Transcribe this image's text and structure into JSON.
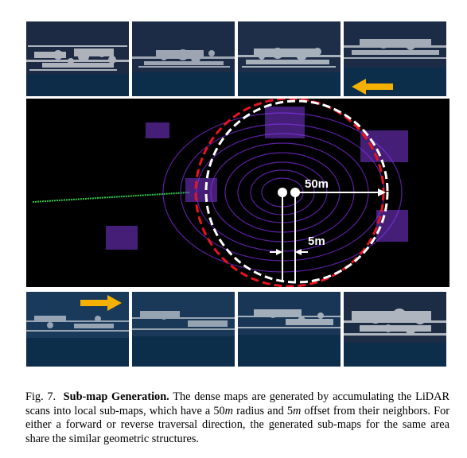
{
  "figure": {
    "number_label": "Fig. 7.",
    "title": "Sub-map Generation.",
    "caption_pre_radius": "The dense maps are generated by accumulating the LiDAR scans into local sub-maps, which have a ",
    "radius_value": "50",
    "radius_unit": "m",
    "caption_mid": " radius and ",
    "offset_value": "5",
    "offset_unit": "m",
    "caption_post": " offset from their neighbors. For either a forward or reverse traversal direction, the generated sub-maps for the same area share the similar geometric structures."
  },
  "main_panel": {
    "radius_label": "50m",
    "offset_label": "5m",
    "circle_colors": {
      "red": "#e8141e",
      "white": "#ffffff"
    }
  },
  "arrows": {
    "top_row": "reverse (left-pointing)",
    "bottom_row": "forward (right-pointing)",
    "color": "#f5b000"
  }
}
